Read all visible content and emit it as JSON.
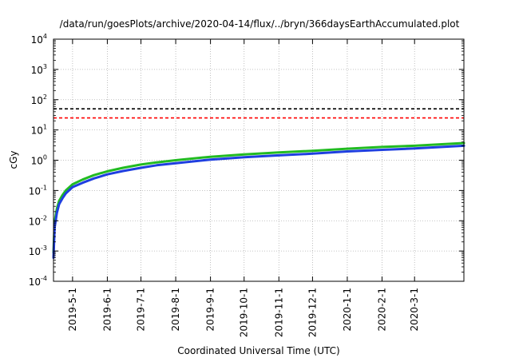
{
  "chart_data": {
    "type": "line",
    "title": "/data/run/goesPlots/archive/2020-04-14/flux/../bryn/366daysEarthAccumulated.plot",
    "xlabel": "Coordinated Universal Time (UTC)",
    "ylabel": "cGy",
    "yscale": "log",
    "ylim": [
      0.0001,
      10000
    ],
    "xlim": [
      "2019-04-14",
      "2020-04-14"
    ],
    "grid": true,
    "legend": "none",
    "y_ticks": [
      {
        "value": 0.0001,
        "base": "10",
        "exp": "-4"
      },
      {
        "value": 0.001,
        "base": "10",
        "exp": "-3"
      },
      {
        "value": 0.01,
        "base": "10",
        "exp": "-2"
      },
      {
        "value": 0.1,
        "base": "10",
        "exp": "-1"
      },
      {
        "value": 1,
        "base": "10",
        "exp": "0"
      },
      {
        "value": 10,
        "base": "10",
        "exp": "1"
      },
      {
        "value": 100,
        "base": "10",
        "exp": "2"
      },
      {
        "value": 1000,
        "base": "10",
        "exp": "3"
      },
      {
        "value": 10000,
        "base": "10",
        "exp": "4"
      }
    ],
    "x_ticks": [
      {
        "date": "2019-05-01",
        "label": "2019-5-1"
      },
      {
        "date": "2019-06-01",
        "label": "2019-6-1"
      },
      {
        "date": "2019-07-01",
        "label": "2019-7-1"
      },
      {
        "date": "2019-08-01",
        "label": "2019-8-1"
      },
      {
        "date": "2019-09-01",
        "label": "2019-9-1"
      },
      {
        "date": "2019-10-01",
        "label": "2019-10-1"
      },
      {
        "date": "2019-11-01",
        "label": "2019-11-1"
      },
      {
        "date": "2019-12-01",
        "label": "2019-12-1"
      },
      {
        "date": "2020-01-01",
        "label": "2020-1-1"
      },
      {
        "date": "2020-02-01",
        "label": "2020-2-1"
      },
      {
        "date": "2020-03-01",
        "label": "2020-3-1"
      }
    ],
    "reference_lines": [
      {
        "value": 50,
        "color": "#000000",
        "style": "dashed"
      },
      {
        "value": 25,
        "color": "#ff0000",
        "style": "dashed"
      }
    ],
    "series": [
      {
        "color": "#22bb22",
        "x": [
          "2019-04-14",
          "2019-04-15",
          "2019-04-17",
          "2019-04-19",
          "2019-04-22",
          "2019-04-25",
          "2019-05-01",
          "2019-05-10",
          "2019-05-20",
          "2019-06-01",
          "2019-06-15",
          "2019-07-01",
          "2019-07-15",
          "2019-08-01",
          "2019-09-01",
          "2019-10-01",
          "2019-11-01",
          "2019-12-01",
          "2020-01-01",
          "2020-02-01",
          "2020-03-01",
          "2020-04-14"
        ],
        "y": [
          0.0009,
          0.009,
          0.025,
          0.045,
          0.07,
          0.1,
          0.16,
          0.23,
          0.32,
          0.43,
          0.56,
          0.72,
          0.85,
          1.0,
          1.3,
          1.55,
          1.8,
          2.05,
          2.4,
          2.75,
          3.0,
          3.7
        ]
      },
      {
        "color": "#1f3fe0",
        "x": [
          "2019-04-14",
          "2019-04-15",
          "2019-04-17",
          "2019-04-19",
          "2019-04-22",
          "2019-04-25",
          "2019-05-01",
          "2019-05-10",
          "2019-05-20",
          "2019-06-01",
          "2019-06-15",
          "2019-07-01",
          "2019-07-15",
          "2019-08-01",
          "2019-09-01",
          "2019-10-01",
          "2019-11-01",
          "2019-12-01",
          "2020-01-01",
          "2020-02-01",
          "2020-03-01",
          "2020-04-14"
        ],
        "y": [
          0.0006,
          0.006,
          0.018,
          0.035,
          0.055,
          0.08,
          0.13,
          0.18,
          0.25,
          0.34,
          0.44,
          0.56,
          0.68,
          0.8,
          1.05,
          1.25,
          1.45,
          1.65,
          1.95,
          2.2,
          2.45,
          3.0
        ]
      }
    ]
  }
}
